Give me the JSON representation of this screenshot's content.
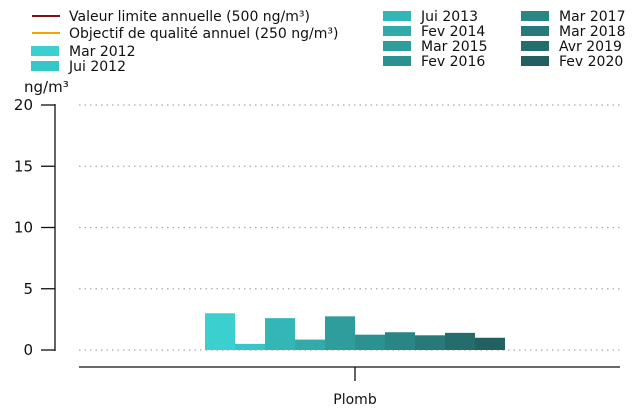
{
  "chart_data": {
    "type": "bar",
    "categories": [
      "Plomb"
    ],
    "series": [
      {
        "name": "Mar 2012",
        "values": [
          3.0
        ],
        "color": "#3ccfcf"
      },
      {
        "name": "Jui 2012",
        "values": [
          0.5
        ],
        "color": "#36c6c7"
      },
      {
        "name": "Jui 2013",
        "values": [
          2.6
        ],
        "color": "#33b6b5"
      },
      {
        "name": "Fev 2014",
        "values": [
          0.85
        ],
        "color": "#31aaa9"
      },
      {
        "name": "Mar 2015",
        "values": [
          2.75
        ],
        "color": "#2e9d9c"
      },
      {
        "name": "Fev 2016",
        "values": [
          1.25
        ],
        "color": "#2c9191"
      },
      {
        "name": "Mar 2017",
        "values": [
          1.45
        ],
        "color": "#2a8585"
      },
      {
        "name": "Mar 2018",
        "values": [
          1.2
        ],
        "color": "#287979"
      },
      {
        "name": "Avr 2019",
        "values": [
          1.4
        ],
        "color": "#256c6d"
      },
      {
        "name": "Fev 2020",
        "values": [
          1.0
        ],
        "color": "#226062"
      }
    ],
    "reference_lines": [
      {
        "name": "Valeur limite annuelle (500 ng/m³)",
        "value": 500,
        "color": "#7a1414"
      },
      {
        "name": "Objectif de qualité annuel (250 ng/m³)",
        "value": 250,
        "color": "#f0a500"
      }
    ],
    "ylabel": "ng/m³",
    "ylim": [
      0,
      20
    ],
    "yticks": [
      "0",
      "5",
      "10",
      "15",
      "20"
    ],
    "grid": "horizontal-dotted",
    "legend_placement": "top"
  }
}
